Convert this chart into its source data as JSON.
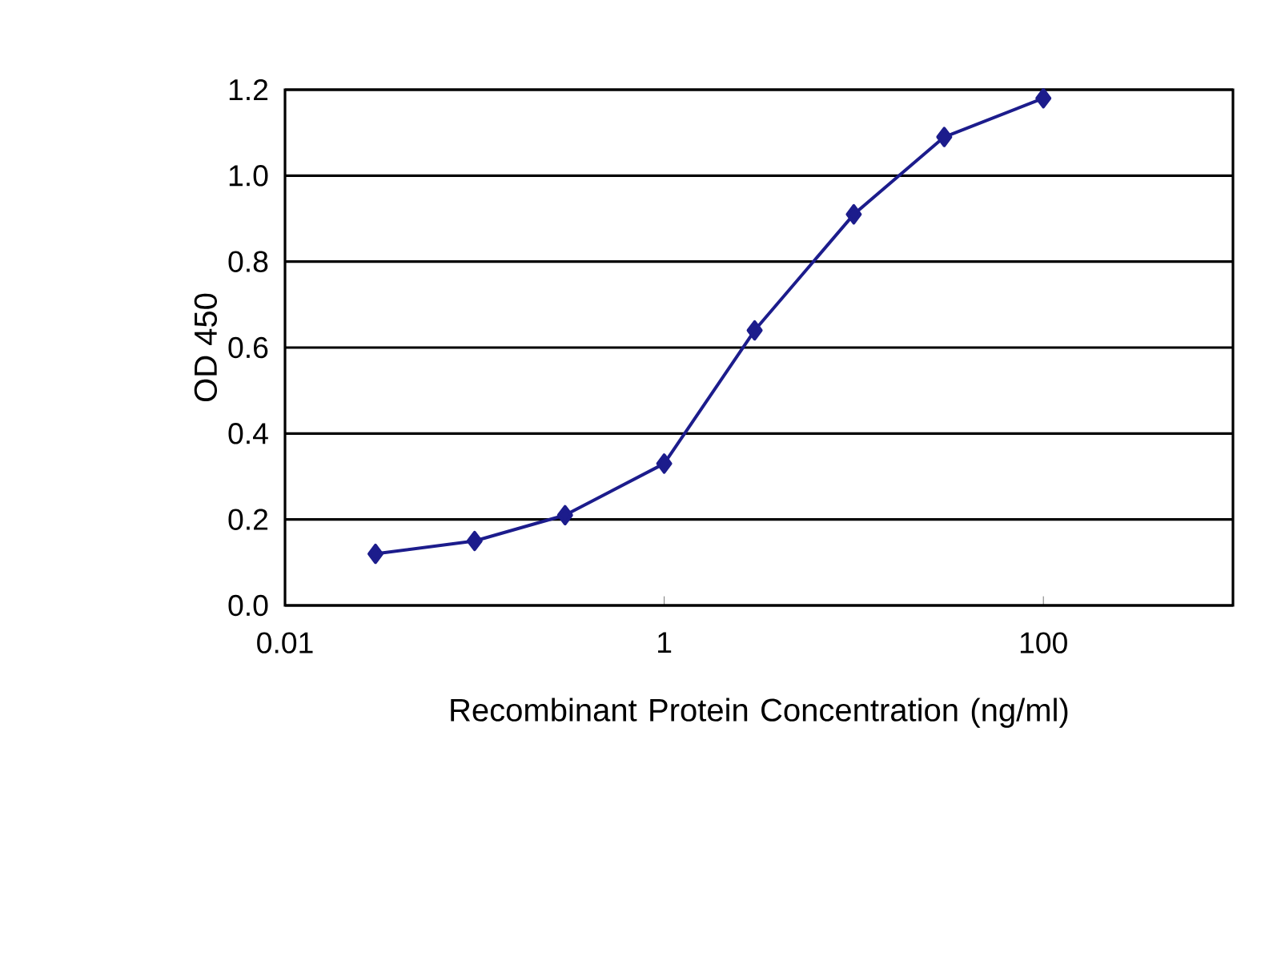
{
  "chart_data": {
    "type": "line",
    "xlabel": "Recombinant  Protein  Concentration (ng/ml)",
    "ylabel": "OD 450",
    "x": [
      0.03,
      0.1,
      0.3,
      1,
      3,
      10,
      30,
      100
    ],
    "values": [
      0.12,
      0.15,
      0.21,
      0.33,
      0.64,
      0.91,
      1.09,
      1.18
    ],
    "color": "#1c1c8c",
    "marker": "diamond",
    "line_style": "solid",
    "log": "x",
    "grid": "y",
    "xlim": [
      0.01,
      1000
    ],
    "xticks": [
      0.01,
      1,
      100
    ],
    "ylim": [
      0,
      1.2
    ],
    "yticks": [
      {
        "value": 0,
        "label": "0.0"
      },
      {
        "value": 0.2,
        "label": "0.2"
      },
      {
        "value": 0.4,
        "label": "0.4"
      },
      {
        "value": 0.6,
        "label": "0.6"
      },
      {
        "value": 0.8,
        "label": "0.8"
      },
      {
        "value": 1.0,
        "label": "1.0"
      },
      {
        "value": 1.2,
        "label": "1.2"
      }
    ]
  }
}
